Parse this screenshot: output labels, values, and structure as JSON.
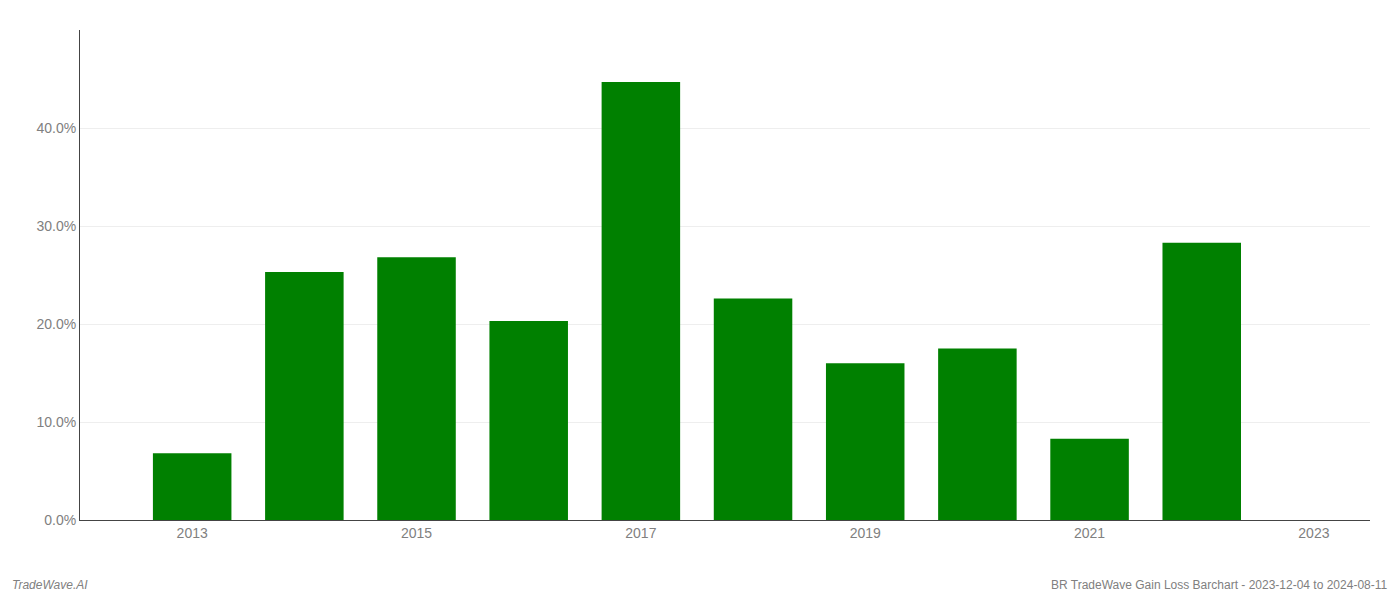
{
  "chart_data": {
    "type": "bar",
    "x": [
      2013,
      2014,
      2015,
      2016,
      2017,
      2018,
      2019,
      2020,
      2021,
      2022
    ],
    "values": [
      0.068,
      0.253,
      0.268,
      0.203,
      0.447,
      0.226,
      0.16,
      0.175,
      0.083,
      0.283
    ],
    "color": "#008000",
    "xlim": [
      2012.0,
      2023.5
    ],
    "xticks": [
      2013,
      2015,
      2017,
      2019,
      2021,
      2023
    ],
    "ylim": [
      0,
      0.5
    ],
    "yticks": [
      {
        "value": 0.0,
        "label": "0.0%"
      },
      {
        "value": 0.1,
        "label": "10.0%"
      },
      {
        "value": 0.2,
        "label": "20.0%"
      },
      {
        "value": 0.3,
        "label": "30.0%"
      },
      {
        "value": 0.4,
        "label": "40.0%"
      }
    ],
    "grid": true,
    "annotations": [
      "TradeWave.AI",
      "BR TradeWave Gain Loss Barchart - 2023-12-04 to 2024-08-11"
    ]
  }
}
